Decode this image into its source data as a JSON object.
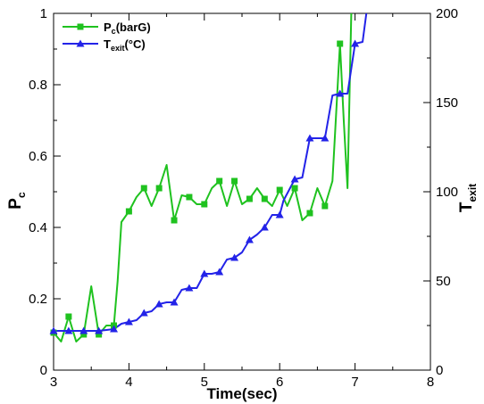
{
  "chart_data": {
    "type": "line",
    "title": "",
    "xlabel": "Time(sec)",
    "x_ticks": [
      "3",
      "4",
      "5",
      "6",
      "7",
      "8"
    ],
    "xlim": [
      3,
      8
    ],
    "ylabel_left": {
      "main": "P",
      "sub": "c"
    },
    "ylim_left": [
      0,
      1
    ],
    "y_ticks_left": [
      "0",
      "0.2",
      "0.4",
      "0.6",
      "0.8",
      "1"
    ],
    "ylabel_right": {
      "main": "T",
      "sub": "exit"
    },
    "ylim_right": [
      0,
      200
    ],
    "y_ticks_right": [
      "0",
      "50",
      "100",
      "150",
      "200"
    ],
    "grid": false,
    "legend_position": "top-left",
    "series": [
      {
        "name": "P_c(barG)",
        "legend": {
          "main": "P",
          "sub": "c",
          "tail": "(barG)"
        },
        "axis": "left",
        "color": "#1fc21f",
        "marker": "square",
        "x": [
          3.0,
          3.1,
          3.2,
          3.3,
          3.4,
          3.5,
          3.6,
          3.7,
          3.8,
          3.85,
          3.9,
          4.0,
          4.1,
          4.2,
          4.3,
          4.4,
          4.5,
          4.6,
          4.7,
          4.8,
          4.9,
          5.0,
          5.1,
          5.2,
          5.3,
          5.4,
          5.5,
          5.6,
          5.7,
          5.8,
          5.9,
          6.0,
          6.1,
          6.2,
          6.3,
          6.4,
          6.5,
          6.6,
          6.7,
          6.8,
          6.85,
          6.9,
          6.95
        ],
        "y": [
          0.105,
          0.08,
          0.15,
          0.08,
          0.1,
          0.235,
          0.1,
          0.125,
          0.125,
          0.25,
          0.415,
          0.445,
          0.485,
          0.51,
          0.46,
          0.51,
          0.575,
          0.42,
          0.49,
          0.485,
          0.465,
          0.465,
          0.51,
          0.53,
          0.46,
          0.53,
          0.465,
          0.48,
          0.51,
          0.48,
          0.46,
          0.505,
          0.46,
          0.51,
          0.42,
          0.44,
          0.51,
          0.46,
          0.53,
          0.915,
          0.7,
          0.51,
          1.0
        ],
        "markers_x": [
          3.0,
          3.2,
          3.4,
          3.6,
          3.8,
          4.0,
          4.2,
          4.4,
          4.6,
          4.8,
          5.0,
          5.2,
          5.4,
          5.6,
          5.8,
          6.0,
          6.2,
          6.4,
          6.6,
          6.8
        ]
      },
      {
        "name": "T_exit(°C)",
        "legend": {
          "main": "T",
          "sub": "exit",
          "tail": "(°C)"
        },
        "axis": "right",
        "color": "#2323e8",
        "marker": "triangle",
        "x": [
          3.0,
          3.3,
          3.6,
          3.8,
          3.9,
          4.0,
          4.1,
          4.2,
          4.3,
          4.4,
          4.5,
          4.6,
          4.7,
          4.8,
          4.9,
          5.0,
          5.1,
          5.2,
          5.3,
          5.4,
          5.5,
          5.6,
          5.7,
          5.8,
          5.9,
          6.0,
          6.05,
          6.2,
          6.3,
          6.4,
          6.5,
          6.6,
          6.7,
          6.8,
          6.9,
          7.0,
          7.1,
          7.15
        ],
        "y": [
          22,
          22,
          22,
          23,
          26,
          27,
          28,
          32,
          33,
          37,
          38,
          38,
          45,
          46,
          46,
          54,
          54,
          55,
          62,
          63,
          66,
          73,
          76,
          80,
          87,
          87,
          95,
          107,
          108,
          130,
          130,
          130,
          154,
          155,
          155,
          183,
          184,
          200
        ],
        "markers_x": [
          3.0,
          3.2,
          3.4,
          3.6,
          3.8,
          4.0,
          4.2,
          4.4,
          4.6,
          4.8,
          5.0,
          5.2,
          5.4,
          5.6,
          5.8,
          6.0,
          6.2,
          6.4,
          6.6,
          6.8,
          7.0
        ]
      }
    ]
  }
}
